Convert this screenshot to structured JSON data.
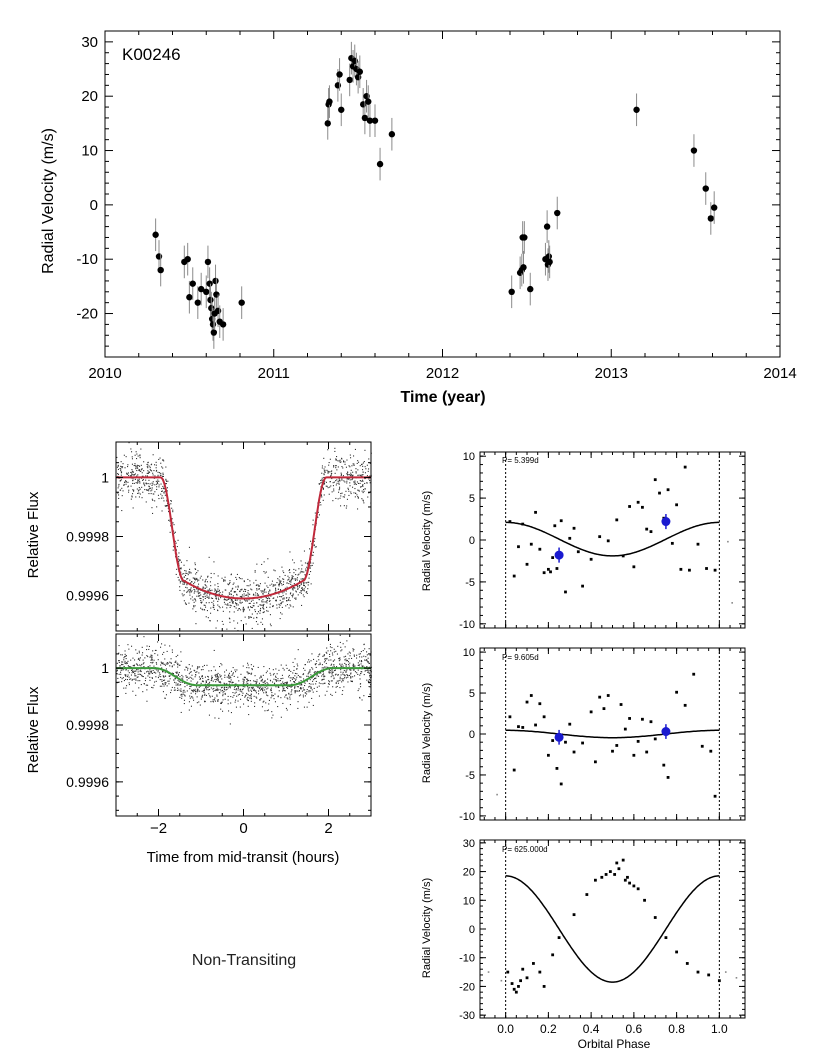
{
  "figure": {
    "caption_nontransiting": "Non-Transiting"
  },
  "chart_data": [
    {
      "id": "rv_time",
      "type": "scatter",
      "title": "K00246",
      "xlabel": "Time (year)",
      "ylabel": "Radial Velocity (m/s)",
      "xlim": [
        2010,
        2014
      ],
      "ylim": [
        -28,
        32
      ],
      "xticks": [
        2010,
        2011,
        2012,
        2013,
        2014
      ],
      "yticks": [
        -20,
        -10,
        0,
        10,
        20,
        30
      ],
      "error_bar": 3,
      "x": [
        2010.3,
        2010.32,
        2010.33,
        2010.47,
        2010.49,
        2010.5,
        2010.52,
        2010.55,
        2010.57,
        2010.6,
        2010.61,
        2010.62,
        2010.625,
        2010.63,
        2010.635,
        2010.64,
        2010.645,
        2010.65,
        2010.655,
        2010.66,
        2010.67,
        2010.68,
        2010.7,
        2010.81,
        2011.32,
        2011.325,
        2011.33,
        2011.38,
        2011.39,
        2011.4,
        2011.45,
        2011.46,
        2011.47,
        2011.48,
        2011.49,
        2011.5,
        2011.51,
        2011.53,
        2011.54,
        2011.55,
        2011.56,
        2011.57,
        2011.6,
        2011.63,
        2011.7,
        2012.41,
        2012.46,
        2012.47,
        2012.475,
        2012.48,
        2012.485,
        2012.52,
        2012.61,
        2012.62,
        2012.625,
        2012.63,
        2012.635,
        2012.68,
        2013.15,
        2013.49,
        2013.56,
        2013.59,
        2013.61
      ],
      "y": [
        -5.5,
        -9.5,
        -12,
        -10.5,
        -10,
        -17,
        -14.5,
        -18,
        -15.5,
        -16,
        -10.5,
        -14.5,
        -17.5,
        -19,
        -21,
        -22,
        -23.5,
        -20,
        -14,
        -16.5,
        -19.5,
        -21.5,
        -22,
        -18,
        15,
        18.5,
        19,
        22,
        24,
        17.5,
        23,
        27,
        25.5,
        26.5,
        25,
        23.5,
        24.5,
        18.5,
        16,
        20,
        19,
        15.5,
        15.5,
        7.5,
        13,
        -16,
        -12.5,
        -12,
        -6,
        -11.5,
        -6,
        -15.5,
        -10,
        -4,
        -11,
        -9.5,
        -10.5,
        -1.5,
        17.5,
        10,
        3,
        -2.5,
        -0.5
      ]
    },
    {
      "id": "transit_lightcurve",
      "type": "scatter",
      "ylabel": "Relative Flux",
      "xlim": [
        -3,
        3
      ],
      "ylim": [
        0.99948,
        1.00012
      ],
      "xticks": [
        -2,
        0,
        2
      ],
      "yticks": [
        1,
        0.9998,
        0.9996
      ],
      "ytick_labels": [
        "1",
        "0.9998",
        "0.9996"
      ],
      "model": {
        "depth": 0.00035,
        "duration": 3.9,
        "ingress": 0.55,
        "limb": 6e-05,
        "color": "#c0293b"
      },
      "noise": 4e-05,
      "n_points": 1500
    },
    {
      "id": "nontransit_lightcurve",
      "type": "scatter",
      "xlabel": "Time from mid-transit (hours)",
      "ylabel": "Relative Flux",
      "xlim": [
        -3,
        3
      ],
      "ylim": [
        0.99948,
        1.00012
      ],
      "xticks": [
        -2,
        0,
        2
      ],
      "xtick_labels": [
        "−2",
        "0",
        "2"
      ],
      "yticks": [
        1,
        0.9998,
        0.9996
      ],
      "ytick_labels": [
        "1",
        "0.9998",
        "0.9996"
      ],
      "model": {
        "depth": 6e-05,
        "duration": 4.2,
        "ingress": 1.0,
        "limb": 0.0,
        "color": "#3a9a3a"
      },
      "noise": 4e-05,
      "n_points": 1500
    },
    {
      "id": "phase_b",
      "type": "scatter",
      "period_label": "P= 5.399d",
      "ylabel": "Radial Velocity (m/s)",
      "xlim": [
        -0.12,
        1.12
      ],
      "ylim": [
        -10.5,
        10.5
      ],
      "yticks": [
        -10,
        -5,
        0,
        5,
        10
      ],
      "model": {
        "amp": 2.0,
        "offset": 0.1
      },
      "binned": {
        "x": [
          0.25,
          0.75
        ],
        "y": [
          -1.8,
          2.2
        ],
        "err": [
          0.9,
          0.9
        ]
      },
      "phase": [
        0.02,
        0.04,
        0.06,
        0.08,
        0.1,
        0.12,
        0.14,
        0.16,
        0.18,
        0.2,
        0.21,
        0.22,
        0.23,
        0.24,
        0.26,
        0.28,
        0.3,
        0.32,
        0.34,
        0.36,
        0.4,
        0.44,
        0.48,
        0.52,
        0.55,
        0.58,
        0.6,
        0.62,
        0.64,
        0.66,
        0.68,
        0.7,
        0.72,
        0.74,
        0.76,
        0.78,
        0.8,
        0.82,
        0.84,
        0.86,
        0.9,
        0.94,
        0.98,
        1.04,
        1.06
      ],
      "rv": [
        2.2,
        -4.3,
        -0.8,
        1.9,
        -2.9,
        -0.5,
        3.3,
        -1.1,
        -3.9,
        -3.5,
        -3.8,
        -2.1,
        1.7,
        -3.4,
        2.3,
        -6.2,
        0.2,
        1.4,
        -1.4,
        -5.5,
        -2.3,
        0.4,
        -0.1,
        2.4,
        -1.9,
        4.0,
        -3.2,
        4.5,
        3.9,
        1.3,
        1.0,
        7.2,
        5.6,
        2.6,
        6.0,
        -0.4,
        4.2,
        -3.5,
        8.7,
        -3.6,
        -0.5,
        -3.4,
        -3.6,
        -0.2,
        -7.5
      ]
    },
    {
      "id": "phase_c",
      "type": "scatter",
      "period_label": "P= 9.605d",
      "ylabel": "Radial Velocity (m/s)",
      "xlim": [
        -0.12,
        1.12
      ],
      "ylim": [
        -10.5,
        10.5
      ],
      "yticks": [
        -10,
        -5,
        0,
        5,
        10
      ],
      "model": {
        "amp": 0.45,
        "offset": 0.0
      },
      "binned": {
        "x": [
          0.25,
          0.75
        ],
        "y": [
          -0.4,
          0.3
        ],
        "err": [
          0.9,
          0.9
        ]
      },
      "phase": [
        0.02,
        0.04,
        0.06,
        0.08,
        0.1,
        0.12,
        0.14,
        0.16,
        0.18,
        0.2,
        0.22,
        0.24,
        0.26,
        0.28,
        0.3,
        0.32,
        0.36,
        0.4,
        0.42,
        0.44,
        0.46,
        0.48,
        0.5,
        0.52,
        0.54,
        0.56,
        0.58,
        0.6,
        0.62,
        0.64,
        0.66,
        0.68,
        0.7,
        0.74,
        0.76,
        0.8,
        0.84,
        0.88,
        0.92,
        0.96,
        0.98,
        -0.04
      ],
      "rv": [
        2.1,
        -4.4,
        0.9,
        0.8,
        3.9,
        4.7,
        1.1,
        3.7,
        2.1,
        -2.6,
        -0.8,
        -4.2,
        -6.1,
        -1.0,
        1.2,
        -2.2,
        -1.1,
        2.7,
        -3.4,
        4.5,
        3.1,
        4.7,
        -2.1,
        -1.4,
        3.6,
        0.6,
        1.9,
        -2.6,
        -0.9,
        1.8,
        -2.2,
        1.5,
        -0.6,
        -3.8,
        -5.3,
        5.1,
        3.5,
        7.3,
        -1.5,
        -2.1,
        -7.6,
        -7.4
      ]
    },
    {
      "id": "phase_d",
      "type": "scatter",
      "period_label": "P= 625.000d",
      "xlabel": "Orbital Phase",
      "ylabel": "Radial Velocity (m/s)",
      "xlim": [
        -0.12,
        1.12
      ],
      "ylim": [
        -31,
        31
      ],
      "xticks": [
        0.0,
        0.2,
        0.4,
        0.6,
        0.8,
        1.0
      ],
      "xtick_labels": [
        "0.0",
        "0.2",
        "0.4",
        "0.6",
        "0.8",
        "1.0"
      ],
      "yticks": [
        -30,
        -20,
        -10,
        0,
        10,
        20,
        30
      ],
      "model": {
        "amp": 18.5,
        "offset": 0.0
      },
      "phase": [
        -0.08,
        -0.02,
        0.01,
        0.03,
        0.04,
        0.05,
        0.06,
        0.07,
        0.08,
        0.1,
        0.13,
        0.16,
        0.18,
        0.22,
        0.25,
        0.32,
        0.38,
        0.42,
        0.45,
        0.47,
        0.49,
        0.51,
        0.52,
        0.53,
        0.55,
        0.56,
        0.57,
        0.58,
        0.6,
        0.62,
        0.65,
        0.7,
        0.75,
        0.8,
        0.85,
        0.9,
        0.95,
        1.0,
        1.03,
        1.08
      ],
      "rv": [
        -15,
        -18,
        -15,
        -19,
        -21,
        -22,
        -20,
        -18,
        -14,
        -17,
        -12,
        -15,
        -20,
        -9,
        -3,
        5,
        12,
        17,
        18,
        19,
        20,
        19,
        23,
        21,
        24,
        17,
        18,
        16,
        15,
        14,
        10,
        4,
        -3,
        -8,
        -12,
        -15,
        -16,
        -18,
        -15,
        -17
      ]
    }
  ]
}
